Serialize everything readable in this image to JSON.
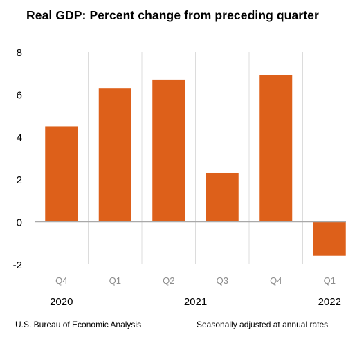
{
  "chart_data": {
    "type": "bar",
    "title": "Real GDP:  Percent change from preceding quarter",
    "categories": [
      "Q4",
      "Q1",
      "Q2",
      "Q3",
      "Q4",
      "Q1"
    ],
    "years": [
      {
        "label": "2020",
        "from": 0,
        "to": 0
      },
      {
        "label": "2021",
        "from": 1,
        "to": 4
      },
      {
        "label": "2022",
        "from": 5,
        "to": 5
      }
    ],
    "values": [
      4.5,
      6.3,
      6.7,
      2.3,
      6.9,
      -1.6
    ],
    "ylim": [
      -2,
      8
    ],
    "yticks": [
      -2,
      0,
      2,
      4,
      6,
      8
    ],
    "xlabel": "",
    "ylabel": "",
    "grid": "vertical separators",
    "bar_color": "#dd601a"
  },
  "footer": {
    "source": "U.S. Bureau of Economic Analysis",
    "note": "Seasonally adjusted at annual rates"
  }
}
